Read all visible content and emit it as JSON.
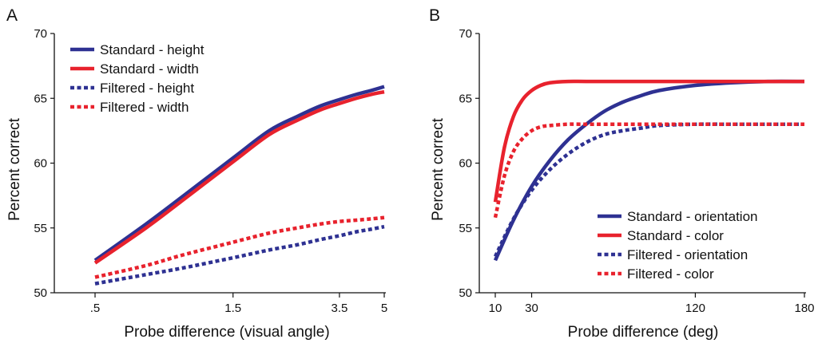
{
  "colors": {
    "standard_blue": "#2e3192",
    "standard_red": "#e8222d",
    "filtered_blue": "#2e3192",
    "filtered_red": "#e8222d"
  },
  "chart_data": [
    {
      "panel": "A",
      "type": "line",
      "title": "",
      "xlabel": "Probe difference (visual angle)",
      "ylabel": "Percent correct",
      "xlim": [
        0.5,
        5
      ],
      "ylim": [
        50,
        70
      ],
      "x_scale": "log",
      "xticks": [
        0.5,
        1.5,
        3.5,
        5
      ],
      "xtick_labels": [
        ".5",
        "1.5",
        "3.5",
        "5"
      ],
      "yticks": [
        50,
        55,
        60,
        65,
        70
      ],
      "ytick_labels": [
        "50",
        "55",
        "60",
        "65",
        "70"
      ],
      "grid": false,
      "legend_position": "top-left",
      "series": [
        {
          "name": "Standard - height",
          "color": "#2e3192",
          "style": "solid",
          "x": [
            0.5,
            0.75,
            1.0,
            1.5,
            2.0,
            2.5,
            3.0,
            3.5,
            4.0,
            4.5,
            5.0
          ],
          "y": [
            52.5,
            55.3,
            57.4,
            60.4,
            62.5,
            63.6,
            64.4,
            64.9,
            65.3,
            65.6,
            65.9
          ]
        },
        {
          "name": "Standard - width",
          "color": "#e8222d",
          "style": "solid",
          "x": [
            0.5,
            0.75,
            1.0,
            1.5,
            2.0,
            2.5,
            3.0,
            3.5,
            4.0,
            4.5,
            5.0
          ],
          "y": [
            52.3,
            55.0,
            57.1,
            60.1,
            62.2,
            63.3,
            64.1,
            64.6,
            65.0,
            65.3,
            65.5
          ]
        },
        {
          "name": "Filtered - height",
          "color": "#2e3192",
          "style": "dotted",
          "x": [
            0.5,
            0.75,
            1.0,
            1.5,
            2.0,
            2.5,
            3.0,
            3.5,
            4.0,
            4.5,
            5.0
          ],
          "y": [
            50.7,
            51.4,
            51.9,
            52.7,
            53.3,
            53.7,
            54.1,
            54.4,
            54.7,
            54.9,
            55.1
          ]
        },
        {
          "name": "Filtered - width",
          "color": "#e8222d",
          "style": "dotted",
          "x": [
            0.5,
            0.75,
            1.0,
            1.5,
            2.0,
            2.5,
            3.0,
            3.5,
            4.0,
            4.5,
            5.0
          ],
          "y": [
            51.2,
            52.1,
            52.9,
            53.9,
            54.6,
            55.0,
            55.3,
            55.5,
            55.6,
            55.7,
            55.8
          ]
        }
      ]
    },
    {
      "panel": "B",
      "type": "line",
      "title": "",
      "xlabel": "Probe difference (deg)",
      "ylabel": "Percent correct",
      "xlim": [
        10,
        180
      ],
      "ylim": [
        50,
        70
      ],
      "x_scale": "linear",
      "xticks": [
        10,
        30,
        120,
        180
      ],
      "xtick_labels": [
        "10",
        "30",
        "120",
        "180"
      ],
      "yticks": [
        50,
        55,
        60,
        65,
        70
      ],
      "ytick_labels": [
        "50",
        "55",
        "60",
        "65",
        "70"
      ],
      "grid": false,
      "legend_position": "bottom-right",
      "series": [
        {
          "name": "Standard - orientation",
          "color": "#2e3192",
          "style": "solid",
          "x": [
            10,
            20,
            30,
            40,
            50,
            60,
            70,
            80,
            90,
            100,
            120,
            140,
            160,
            180
          ],
          "y": [
            52.5,
            55.6,
            58.2,
            60.2,
            61.8,
            63.0,
            64.0,
            64.7,
            65.2,
            65.6,
            66.0,
            66.2,
            66.3,
            66.3
          ]
        },
        {
          "name": "Standard - color",
          "color": "#e8222d",
          "style": "solid",
          "x": [
            10,
            15,
            20,
            25,
            30,
            35,
            40,
            50,
            60,
            80,
            100,
            120,
            140,
            160,
            180
          ],
          "y": [
            57.0,
            61.2,
            63.6,
            64.9,
            65.6,
            66.0,
            66.2,
            66.3,
            66.3,
            66.3,
            66.3,
            66.3,
            66.3,
            66.3,
            66.3
          ]
        },
        {
          "name": "Filtered - orientation",
          "color": "#2e3192",
          "style": "dotted",
          "x": [
            10,
            20,
            30,
            40,
            50,
            60,
            70,
            80,
            90,
            100,
            120,
            140,
            160,
            180
          ],
          "y": [
            52.8,
            55.7,
            57.9,
            59.5,
            60.7,
            61.6,
            62.2,
            62.5,
            62.7,
            62.9,
            63.0,
            63.0,
            63.0,
            63.0
          ]
        },
        {
          "name": "Filtered - color",
          "color": "#e8222d",
          "style": "dotted",
          "x": [
            10,
            15,
            20,
            25,
            30,
            35,
            40,
            50,
            60,
            80,
            100,
            120,
            140,
            160,
            180
          ],
          "y": [
            55.8,
            59.0,
            60.9,
            61.9,
            62.5,
            62.8,
            62.9,
            63.0,
            63.0,
            63.0,
            63.0,
            63.0,
            63.0,
            63.0,
            63.0
          ]
        }
      ]
    }
  ]
}
